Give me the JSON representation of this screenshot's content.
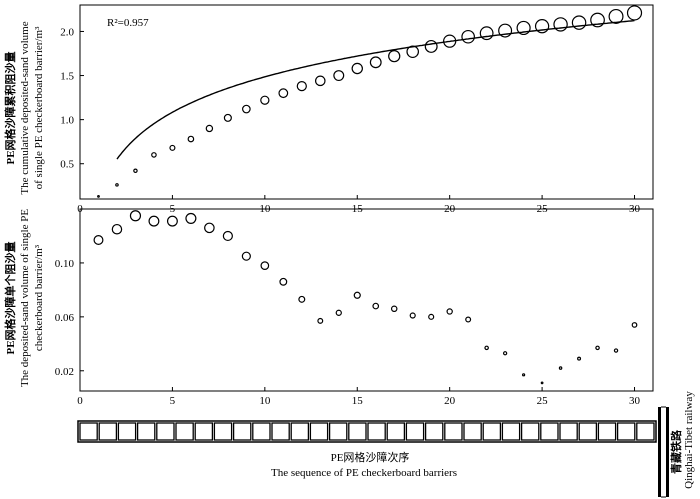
{
  "chart_data": [
    {
      "type": "scatter",
      "annotation": "R²=0.957",
      "ylabel_cn": "PE网格沙障累积阻沙量",
      "ylabel_en_line1": "The cumulative deposited-sand volume",
      "ylabel_en_line2": "of single PE checkerboard barrier/m³",
      "xlim": [
        0,
        31
      ],
      "ylim": [
        0.1,
        2.3
      ],
      "xticks": [
        0,
        5,
        10,
        15,
        20,
        25,
        30
      ],
      "yticks": [
        0.5,
        1.0,
        1.5,
        2.0
      ],
      "ytick_labels": [
        "0.5",
        "1.0",
        "1.5",
        "2.0"
      ],
      "x": [
        1,
        2,
        3,
        4,
        5,
        6,
        7,
        8,
        9,
        10,
        11,
        12,
        13,
        14,
        15,
        16,
        17,
        18,
        19,
        20,
        21,
        22,
        23,
        24,
        25,
        26,
        27,
        28,
        29,
        30
      ],
      "y": [
        0.13,
        0.26,
        0.42,
        0.6,
        0.68,
        0.78,
        0.9,
        1.02,
        1.12,
        1.22,
        1.3,
        1.38,
        1.44,
        1.5,
        1.58,
        1.65,
        1.72,
        1.77,
        1.83,
        1.89,
        1.94,
        1.98,
        2.01,
        2.04,
        2.06,
        2.08,
        2.1,
        2.13,
        2.17,
        2.21
      ],
      "fit": {
        "type": "logarithmic",
        "a": 0.15,
        "b": 0.58,
        "x_start": 2,
        "x_end": 30
      }
    },
    {
      "type": "scatter",
      "ylabel_cn": "PE网格沙障单个阻沙量",
      "ylabel_en_line1": "The deposited-sand volume of single PE",
      "ylabel_en_line2": "checkerboard barrier/m³",
      "xlim": [
        0,
        31
      ],
      "ylim": [
        0.005,
        0.14
      ],
      "xticks": [
        0,
        5,
        10,
        15,
        20,
        25,
        30
      ],
      "yticks": [
        0.02,
        0.06,
        0.1
      ],
      "ytick_labels": [
        "0.02",
        "0.06",
        "0.10"
      ],
      "x": [
        1,
        2,
        3,
        4,
        5,
        6,
        7,
        8,
        9,
        10,
        11,
        12,
        13,
        14,
        15,
        16,
        17,
        18,
        19,
        20,
        21,
        22,
        23,
        24,
        25,
        26,
        27,
        28,
        29,
        30
      ],
      "y": [
        0.117,
        0.125,
        0.135,
        0.131,
        0.131,
        0.133,
        0.126,
        0.12,
        0.105,
        0.098,
        0.086,
        0.073,
        0.057,
        0.063,
        0.076,
        0.068,
        0.066,
        0.061,
        0.06,
        0.064,
        0.058,
        0.037,
        0.033,
        0.017,
        0.011,
        0.022,
        0.029,
        0.037,
        0.035,
        0.054
      ]
    }
  ],
  "barrier_strip": {
    "count": 30
  },
  "xlabel_cn": "PE网格沙障次序",
  "xlabel_en": "The sequence of PE checkerboard barriers",
  "railway_cn": "青藏铁路",
  "railway_en": "Qinghai-Tibet railway"
}
